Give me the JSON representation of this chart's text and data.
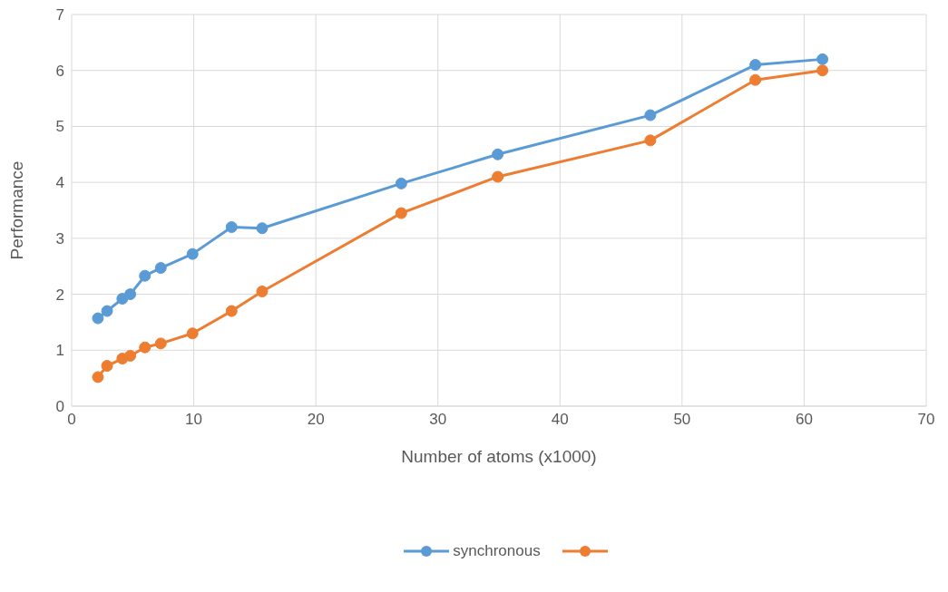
{
  "chart_data": {
    "type": "line",
    "xlabel": "Number of atoms (x1000)",
    "ylabel": "Performance",
    "x": [
      2.15,
      2.9,
      4.15,
      4.8,
      6.0,
      7.3,
      9.9,
      13.1,
      15.6,
      27.0,
      34.9,
      47.4,
      56.0,
      61.5
    ],
    "series": [
      {
        "name": "synchronous",
        "color": "#5b9bd5",
        "values": [
          1.57,
          1.7,
          1.92,
          2.0,
          2.33,
          2.47,
          2.72,
          3.2,
          3.18,
          3.98,
          4.5,
          5.2,
          6.1,
          6.2
        ]
      },
      {
        "color": "#ed7d31",
        "values": [
          0.52,
          0.72,
          0.85,
          0.9,
          1.05,
          1.12,
          1.3,
          1.7,
          2.05,
          3.45,
          4.1,
          4.75,
          5.83,
          6.0
        ]
      }
    ],
    "xlim": [
      0,
      70
    ],
    "xticks": [
      0,
      10,
      20,
      30,
      40,
      50,
      60,
      70
    ],
    "ylim": [
      0,
      7
    ],
    "yticks": [
      0,
      1,
      2,
      3,
      4,
      5,
      6,
      7
    ],
    "grid": true,
    "legend": "bottom",
    "marker": "circle",
    "line_style": "solid"
  }
}
